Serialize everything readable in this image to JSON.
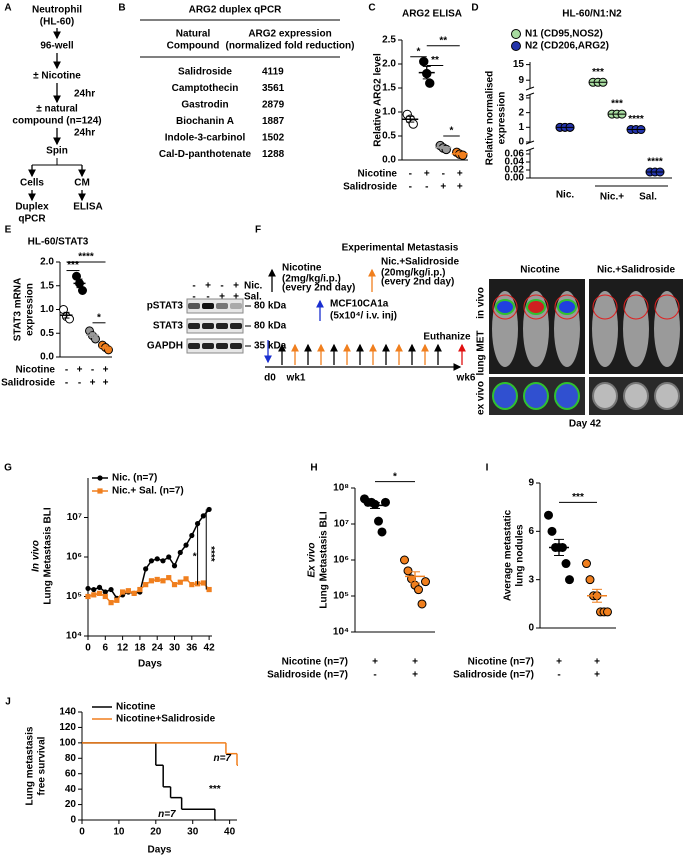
{
  "panel_labels": [
    "A",
    "B",
    "C",
    "D",
    "E",
    "F",
    "G",
    "H",
    "I",
    "J"
  ],
  "diagram_a": {
    "cell": "Neutrophil",
    "cell_line": "(HL-60)",
    "plate": "96-well",
    "step1": "± Nicotine",
    "wait1": "24hr",
    "step2": [
      "± natural",
      "compound (n=124)"
    ],
    "wait2": "24hr",
    "spin": "Spin",
    "branches": [
      "Cells",
      "CM"
    ],
    "assay1": [
      "Duplex",
      "qPCR"
    ],
    "assay2": "ELISA"
  },
  "table_b": {
    "title": "ARG2 duplex qPCR",
    "headers": [
      [
        "Natural",
        "Compound"
      ],
      [
        "ARG2 expression",
        "(normalized fold reduction)"
      ]
    ],
    "rows": [
      [
        "Salidroside",
        4119
      ],
      [
        "Camptothecin",
        3561
      ],
      [
        "Gastrodin",
        2879
      ],
      [
        "Biochanin A",
        1887
      ],
      [
        "Indole-3-carbinol",
        1502
      ],
      [
        "Cal-D-panthotenate",
        1288
      ]
    ]
  },
  "western_blot": {
    "treatments": [
      {
        "name": "Nic.",
        "signs": [
          "-",
          "+",
          "-",
          "+"
        ]
      },
      {
        "name": "Sal.",
        "signs": [
          "-",
          "-",
          "+",
          "+"
        ]
      }
    ],
    "bands": [
      "pSTAT3",
      "STAT3",
      "GAPDH"
    ],
    "markers": [
      "80 kDa",
      "80 kDa",
      "35 kDa"
    ]
  },
  "panel_f": {
    "title": "Experimental Metastasis",
    "legend": [
      {
        "name": "Nicotine",
        "detail": [
          "(2mg/kg/i.p.)",
          "(every 2nd day)"
        ]
      },
      {
        "name": "Nic.+Salidroside",
        "detail": [
          "(20mg/kg/i.p.)",
          "(every 2nd day)"
        ]
      },
      {
        "name": "MCF10CA1a",
        "detail": [
          "(5x10⁴/ i.v. inj)"
        ]
      }
    ],
    "timeline": [
      "d0",
      "wk1",
      "wk6"
    ],
    "endpoint": "Euthanize",
    "image_headers": [
      "Nicotine",
      "Nic.+Salidroside"
    ],
    "row_labels": [
      "in vivo",
      "lung MET",
      "ex vivo"
    ],
    "caption": "Day 42"
  },
  "chart_data": [
    {
      "type": "dot",
      "title": "ARG2 ELISA",
      "ylabel": "Relative ARG2 level",
      "ylim": [
        0,
        2.5
      ],
      "yticks": [
        {
          "value": 0,
          "label": "0.0"
        },
        0.5,
        {
          "value": 1,
          "label": "1.0"
        },
        1.5,
        {
          "value": 2,
          "label": "2.0"
        },
        2.5
      ],
      "conditions": [
        {
          "name": "Nicotine",
          "color": "#000000",
          "signs": [
            "-",
            "+",
            "-",
            "+"
          ]
        },
        {
          "name": "Salidroside",
          "color": "#f07f1e",
          "signs": [
            "-",
            "-",
            "+",
            "+"
          ]
        }
      ],
      "groups": [
        {
          "color": "#ffffff",
          "values": [
            0.95,
            0.85,
            0.75
          ],
          "mean": 0.85,
          "sem": 0.06
        },
        {
          "color": "#000000",
          "values": [
            2.05,
            1.8,
            1.6
          ],
          "mean": 1.82,
          "sem": 0.13
        },
        {
          "color": "#999999",
          "values": [
            0.3,
            0.25,
            0.22
          ],
          "mean": 0.26,
          "sem": 0.02
        },
        {
          "color": "#f07f1e",
          "values": [
            0.16,
            0.12,
            0.1
          ],
          "mean": 0.13,
          "sem": 0.02
        }
      ],
      "annotations": [
        "*",
        "**",
        "**",
        "*"
      ]
    },
    {
      "type": "broken_dot",
      "title": "HL-60/N1:N2",
      "ylabel": [
        "Relative normalised",
        "expression"
      ],
      "ysegments": [
        {
          "ylim": [
            0,
            0.07
          ],
          "yticks": [
            {
              "value": 0,
              "label": "0.00"
            },
            0.02,
            0.04,
            0.06
          ]
        },
        {
          "ylim": [
            0,
            3.2
          ],
          "yticks": [
            0,
            1,
            2,
            3
          ]
        },
        {
          "ylim": [
            6,
            16
          ],
          "yticks": [
            9,
            15
          ]
        }
      ],
      "categories": [
        "Nic.",
        null,
        null,
        null,
        null
      ],
      "group_label": [
        "Nic.+",
        "Sal."
      ],
      "series": [
        {
          "name": "N1 (CD95,NOS2)",
          "color": "#a8dba0",
          "values": [
            1.0,
            8.2,
            1.9,
            null,
            null
          ]
        },
        {
          "name": "N2 (CD206,ARG2)",
          "color": "#2233aa",
          "values": [
            1.0,
            null,
            null,
            0.85,
            0.015
          ]
        }
      ],
      "annotations": [
        "***",
        "***",
        "****",
        "****"
      ]
    },
    {
      "type": "dot",
      "title": "HL-60/STAT3",
      "ylabel": [
        "STAT3 mRNA",
        "expression"
      ],
      "ylim": [
        0,
        2
      ],
      "yticks": [
        {
          "value": 0,
          "label": "0.0"
        },
        0.5,
        {
          "value": 1,
          "label": "1.0"
        },
        1.5,
        {
          "value": 2,
          "label": "2.0"
        }
      ],
      "conditions": [
        {
          "name": "Nicotine",
          "color": "#000000",
          "signs": [
            "-",
            "+",
            "-",
            "+"
          ]
        },
        {
          "name": "Salidroside",
          "color": "#f07f1e",
          "signs": [
            "-",
            "-",
            "+",
            "+"
          ]
        }
      ],
      "groups": [
        {
          "color": "#ffffff",
          "values": [
            1.0,
            0.85,
            0.8
          ],
          "mean": 0.88,
          "sem": 0.06
        },
        {
          "color": "#000000",
          "values": [
            1.7,
            1.55,
            1.4
          ],
          "mean": 1.55,
          "sem": 0.09
        },
        {
          "color": "#999999",
          "values": [
            0.55,
            0.45,
            0.38
          ],
          "mean": 0.46,
          "sem": 0.05
        },
        {
          "color": "#f07f1e",
          "values": [
            0.25,
            0.2,
            0.15
          ],
          "mean": 0.2,
          "sem": 0.03
        }
      ],
      "annotations": [
        "****",
        "***",
        "*"
      ]
    },
    {
      "type": "line",
      "ylabel": [
        "In vivo",
        "Lung Metastasis BLI"
      ],
      "xlabel": "Days",
      "log": true,
      "ylim": [
        10000,
        100000000
      ],
      "yticks": [
        {
          "value": 10000,
          "label": "10⁴"
        },
        {
          "value": 100000,
          "label": "10⁵"
        },
        {
          "value": 1000000,
          "label": "10⁶"
        },
        {
          "value": 10000000,
          "label": "10⁷"
        }
      ],
      "xlim": [
        0,
        43
      ],
      "xticks": [
        0,
        6,
        12,
        18,
        24,
        30,
        36,
        42
      ],
      "x": [
        0,
        2,
        4,
        6,
        8,
        10,
        12,
        14,
        16,
        18,
        20,
        22,
        24,
        26,
        28,
        30,
        32,
        34,
        36,
        38,
        40,
        42
      ],
      "series": [
        {
          "name": "Nic. (n=7)",
          "color": "#000000",
          "values": [
            160000,
            150000,
            170000,
            130000,
            150000,
            90000,
            110000,
            130000,
            120000,
            130000,
            500000,
            800000,
            900000,
            800000,
            1000000,
            600000,
            1300000,
            2000000,
            3500000,
            7000000,
            11000000,
            16000000
          ]
        },
        {
          "name": "Nic.+ Sal. (n=7)",
          "color": "#f07f1e",
          "values": [
            100000,
            110000,
            120000,
            100000,
            70000,
            80000,
            130000,
            140000,
            120000,
            150000,
            200000,
            250000,
            270000,
            250000,
            300000,
            200000,
            230000,
            280000,
            200000,
            210000,
            220000,
            150000
          ]
        }
      ],
      "annotations": [
        "*",
        "****"
      ]
    },
    {
      "type": "dot",
      "log": true,
      "ylabel": [
        "Ex vivo",
        "Lung Metastasis BLI"
      ],
      "ylim": [
        10000,
        100000000
      ],
      "yticks": [
        {
          "value": 10000,
          "label": "10⁴"
        },
        {
          "value": 100000,
          "label": "10⁵"
        },
        {
          "value": 1000000,
          "label": "10⁶"
        },
        {
          "value": 10000000,
          "label": "10⁷"
        },
        {
          "value": 100000000,
          "label": "10⁸"
        }
      ],
      "conditions": [
        {
          "name": "Nicotine (n=7)",
          "color": "#000000",
          "signs": [
            "+",
            "+"
          ]
        },
        {
          "name": "Salidroside (n=7)",
          "color": "#f07f1e",
          "signs": [
            "-",
            "+"
          ]
        }
      ],
      "groups": [
        {
          "color": "#000000",
          "values": [
            50000000,
            40000000,
            40000000,
            35000000,
            12000000,
            6000000,
            40000000
          ],
          "mean": 33000000,
          "sem": 6000000
        },
        {
          "color": "#f07f1e",
          "values": [
            1000000,
            500000,
            300000,
            200000,
            150000,
            60000,
            250000
          ],
          "mean": 350000,
          "sem": 120000
        }
      ],
      "annotations": [
        "*"
      ]
    },
    {
      "type": "dot",
      "ylabel": [
        "Average metastatic",
        "lung nodules"
      ],
      "ylim": [
        0,
        9
      ],
      "yticks": [
        0,
        3,
        6,
        9
      ],
      "conditions": [
        {
          "name": "Nicotine (n=7)",
          "color": "#000000",
          "signs": [
            "+",
            "+"
          ]
        },
        {
          "name": "Salidroside (n=7)",
          "color": "#f07f1e",
          "signs": [
            "-",
            "+"
          ]
        }
      ],
      "groups": [
        {
          "color": "#000000",
          "values": [
            7,
            6,
            5,
            5,
            5,
            4,
            3
          ],
          "mean": 5,
          "sem": 0.5
        },
        {
          "color": "#f07f1e",
          "values": [
            4,
            3,
            2,
            2,
            1,
            1,
            1
          ],
          "mean": 2,
          "sem": 0.4
        }
      ],
      "annotations": [
        "***"
      ]
    },
    {
      "type": "step",
      "ylabel": [
        "Lung metastasis",
        "free survival"
      ],
      "xlabel": "Days",
      "ylim": [
        0,
        140
      ],
      "yticks": [
        0,
        20,
        40,
        60,
        80,
        100,
        120,
        140
      ],
      "xlim": [
        0,
        42
      ],
      "xticks": [
        0,
        10,
        20,
        30,
        40
      ],
      "series": [
        {
          "name": "Nicotine",
          "color": "#000000",
          "x": [
            0,
            20,
            22,
            24,
            27,
            36
          ],
          "values": [
            100,
            71,
            43,
            29,
            14,
            0
          ]
        },
        {
          "name": "Nicotine+Salidroside",
          "color": "#f07f1e",
          "x": [
            0,
            39,
            42
          ],
          "values": [
            100,
            86,
            71
          ]
        }
      ],
      "annotations": [
        "n=7",
        "***",
        "n=7"
      ]
    }
  ]
}
